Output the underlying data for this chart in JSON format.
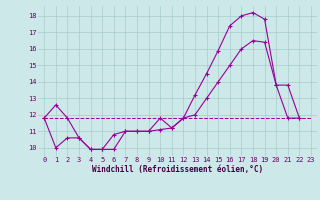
{
  "xlabel": "Windchill (Refroidissement éolien,°C)",
  "bg_color": "#cce8e8",
  "grid_color": "#a8cccc",
  "line_color": "#990099",
  "xlim": [
    -0.5,
    23.5
  ],
  "ylim": [
    9.5,
    18.6
  ],
  "yticks": [
    10,
    11,
    12,
    13,
    14,
    15,
    16,
    17,
    18
  ],
  "xticks": [
    0,
    1,
    2,
    3,
    4,
    5,
    6,
    7,
    8,
    9,
    10,
    11,
    12,
    13,
    14,
    15,
    16,
    17,
    18,
    19,
    20,
    21,
    22,
    23
  ],
  "series1_x": [
    0,
    1,
    2,
    3,
    4,
    5,
    6,
    7,
    8,
    9,
    10,
    11,
    12,
    13,
    14,
    15,
    16,
    17,
    18,
    19,
    20,
    21,
    22
  ],
  "series1_y": [
    11.8,
    12.6,
    11.8,
    10.6,
    9.9,
    9.9,
    9.9,
    11.0,
    11.0,
    11.0,
    11.8,
    11.2,
    11.8,
    13.2,
    14.5,
    15.9,
    17.4,
    18.0,
    18.2,
    17.8,
    13.8,
    11.8,
    11.8
  ],
  "series2_x": [
    0,
    1,
    2,
    3,
    4,
    5,
    6,
    7,
    8,
    9,
    10,
    11,
    12,
    13,
    14,
    15,
    16,
    17,
    18,
    19,
    20,
    21,
    22
  ],
  "series2_y": [
    11.8,
    10.0,
    10.6,
    10.6,
    9.9,
    9.9,
    10.8,
    11.0,
    11.0,
    11.0,
    11.1,
    11.2,
    11.8,
    12.0,
    13.0,
    14.0,
    15.0,
    16.0,
    16.5,
    16.4,
    13.8,
    13.8,
    11.8
  ],
  "flat_x": [
    0,
    1,
    2,
    3,
    4,
    5,
    6,
    7,
    8,
    9,
    10,
    11,
    12,
    13,
    14,
    15,
    16,
    17,
    18,
    19,
    20,
    21,
    22,
    23
  ],
  "flat_y": [
    11.8,
    11.8,
    11.8,
    11.8,
    11.8,
    11.8,
    11.8,
    11.8,
    11.8,
    11.8,
    11.8,
    11.8,
    11.8,
    11.8,
    11.8,
    11.8,
    11.8,
    11.8,
    11.8,
    11.8,
    11.8,
    11.8,
    11.8,
    11.8
  ],
  "tick_fontsize": 5,
  "xlabel_fontsize": 5.5,
  "tick_color": "#660066",
  "xlabel_color": "#440044"
}
